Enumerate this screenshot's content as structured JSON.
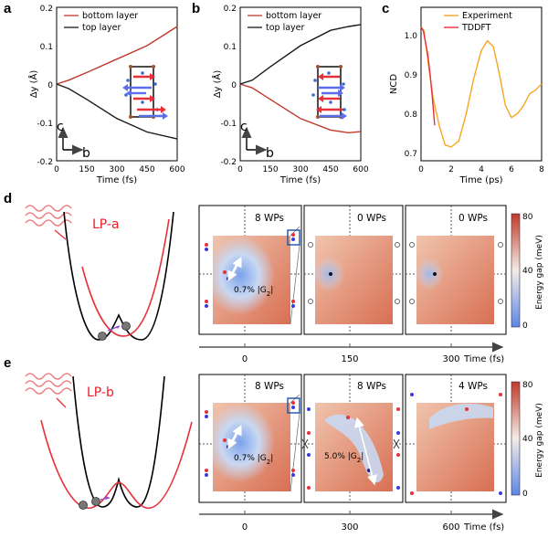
{
  "panels": {
    "a": {
      "label": "a",
      "ylabel": "Δy (Å)",
      "xlabel": "Time (fs)",
      "legend": [
        "bottom layer",
        "top layer"
      ],
      "axis_c": "c",
      "axis_b": "b",
      "xticks": [
        "0",
        "150",
        "300",
        "450",
        "600"
      ],
      "yticks": [
        "0.2",
        "0.1",
        "0",
        "-0.1",
        "-0.2"
      ]
    },
    "b": {
      "label": "b",
      "ylabel": "Δy (Å)",
      "xlabel": "Time (fs)",
      "legend": [
        "bottom layer",
        "top layer"
      ],
      "axis_c": "c",
      "axis_b": "b",
      "xticks": [
        "0",
        "150",
        "300",
        "450",
        "600"
      ],
      "yticks": [
        "0.2",
        "0.1",
        "0",
        "-0.1",
        "-0.2"
      ]
    },
    "c": {
      "label": "c",
      "ylabel": "NCD",
      "xlabel": "Time (ps)",
      "legend": [
        "Experiment",
        "TDDFT"
      ],
      "xticks": [
        "0",
        "2",
        "4",
        "6",
        "8"
      ],
      "yticks": [
        "1.0",
        "0.9",
        "0.8",
        "0.7"
      ]
    },
    "d": {
      "label": "d",
      "lp_label": "LP-a",
      "wp_labels": [
        "8 WPs",
        "0 WPs",
        "0 WPs"
      ],
      "g_label": "0.7% |G",
      "g_sub": "2",
      "time_ticks": [
        "0",
        "150",
        "300"
      ],
      "time_label": "Time (fs)",
      "cbar_label": "Energy gap (meV)",
      "cbar_ticks": [
        "80",
        "40",
        "0"
      ]
    },
    "e": {
      "label": "e",
      "lp_label": "LP-b",
      "wp_labels": [
        "8 WPs",
        "8 WPs",
        "4 WPs"
      ],
      "g_labels": [
        "0.7% |G",
        "5.0% |G"
      ],
      "g_sub": "2",
      "time_ticks": [
        "0",
        "300",
        "600"
      ],
      "time_label": "Time (fs)",
      "cbar_label": "Energy gap (meV)",
      "cbar_ticks": [
        "80",
        "40",
        "0"
      ]
    }
  },
  "colors": {
    "bottom": "#c0392b",
    "top": "#1a1a1a",
    "experiment": "#f5a623",
    "tddft": "#e8303a",
    "cbar_low": "#5b86e5",
    "cbar_high": "#c0392b"
  },
  "chart_data": [
    {
      "type": "line",
      "panel": "a",
      "xlabel": "Time (fs)",
      "ylabel": "Δy (Å)",
      "xlim": [
        0,
        600
      ],
      "ylim": [
        -0.2,
        0.2
      ],
      "series": [
        {
          "name": "bottom layer",
          "x": [
            0,
            60,
            150,
            300,
            450,
            600
          ],
          "y": [
            0,
            0.01,
            0.03,
            0.065,
            0.1,
            0.15
          ]
        },
        {
          "name": "top layer",
          "x": [
            0,
            60,
            150,
            300,
            450,
            600
          ],
          "y": [
            0,
            -0.012,
            -0.04,
            -0.09,
            -0.125,
            -0.143
          ]
        }
      ]
    },
    {
      "type": "line",
      "panel": "b",
      "xlabel": "Time (fs)",
      "ylabel": "Δy (Å)",
      "xlim": [
        0,
        600
      ],
      "ylim": [
        -0.2,
        0.2
      ],
      "series": [
        {
          "name": "bottom layer",
          "x": [
            0,
            60,
            150,
            300,
            450,
            540,
            600
          ],
          "y": [
            0,
            -0.01,
            -0.04,
            -0.09,
            -0.12,
            -0.127,
            -0.124
          ]
        },
        {
          "name": "top layer",
          "x": [
            0,
            60,
            150,
            300,
            450,
            540,
            600
          ],
          "y": [
            0,
            0.01,
            0.045,
            0.1,
            0.14,
            0.15,
            0.155
          ]
        }
      ]
    },
    {
      "type": "line",
      "panel": "c",
      "xlabel": "Time (ps)",
      "ylabel": "NCD",
      "xlim": [
        0,
        8
      ],
      "ylim": [
        0.66,
        1.05
      ],
      "series": [
        {
          "name": "Experiment",
          "x": [
            0,
            0.2,
            0.5,
            0.8,
            1.2,
            1.6,
            2.0,
            2.5,
            3.0,
            3.5,
            4.0,
            4.4,
            4.8,
            5.2,
            5.6,
            6.0,
            6.4,
            6.8,
            7.2,
            7.6,
            8.0
          ],
          "y": [
            1.0,
            0.99,
            0.9,
            0.82,
            0.75,
            0.7,
            0.695,
            0.71,
            0.78,
            0.87,
            0.94,
            0.965,
            0.95,
            0.88,
            0.8,
            0.77,
            0.78,
            0.8,
            0.83,
            0.84,
            0.855
          ]
        },
        {
          "name": "TDDFT",
          "x": [
            0,
            0.15,
            0.3,
            0.45,
            0.6,
            0.75,
            0.9
          ],
          "y": [
            1.0,
            0.99,
            0.96,
            0.93,
            0.88,
            0.82,
            0.75
          ]
        }
      ]
    }
  ]
}
